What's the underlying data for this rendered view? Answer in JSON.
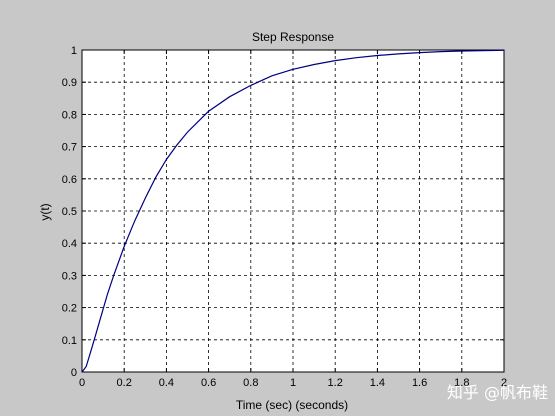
{
  "chart_data": {
    "type": "line",
    "title": "Step Response",
    "xlabel": "Time (sec) (seconds)",
    "ylabel": "y(t)",
    "xlim": [
      0,
      2
    ],
    "ylim": [
      0,
      1
    ],
    "grid": true,
    "grid_style": "dashed",
    "x_ticks": [
      "0",
      "0.2",
      "0.4",
      "0.6",
      "0.8",
      "1",
      "1.2",
      "1.4",
      "1.6",
      "1.8",
      "2"
    ],
    "y_ticks": [
      "0",
      "0.1",
      "0.2",
      "0.3",
      "0.4",
      "0.5",
      "0.6",
      "0.7",
      "0.8",
      "0.9",
      "1"
    ],
    "series": [
      {
        "color": "#000080",
        "x": [
          0,
          0.02,
          0.04,
          0.06,
          0.08,
          0.1,
          0.12,
          0.15,
          0.2,
          0.25,
          0.3,
          0.35,
          0.4,
          0.45,
          0.5,
          0.6,
          0.7,
          0.8,
          0.9,
          1.0,
          1.1,
          1.2,
          1.3,
          1.4,
          1.5,
          1.6,
          1.7,
          1.8,
          1.9,
          2.0
        ],
        "y": [
          0,
          0.017,
          0.06,
          0.105,
          0.15,
          0.195,
          0.24,
          0.3,
          0.39,
          0.47,
          0.54,
          0.605,
          0.66,
          0.705,
          0.745,
          0.81,
          0.855,
          0.89,
          0.92,
          0.94,
          0.955,
          0.967,
          0.976,
          0.983,
          0.988,
          0.992,
          0.995,
          0.997,
          0.998,
          0.999
        ]
      }
    ]
  },
  "colors": {
    "figure_background": "#c8c8c8",
    "axes_background": "#ffffff",
    "line": "#000080"
  },
  "watermark": "知乎 @帆布鞋"
}
